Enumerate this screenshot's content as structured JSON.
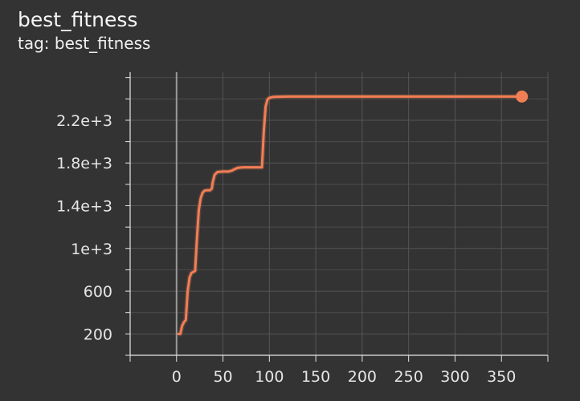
{
  "card": {
    "title": "best_fitness",
    "subtitle": "tag: best_fitness"
  },
  "colors": {
    "background": "#333333",
    "series": "#f27e55",
    "raw": "#8a5746",
    "grid": "#555555",
    "axis": "#e6e6e6",
    "zero_line": "#9a9a9a"
  },
  "chart_data": {
    "type": "line",
    "title": "best_fitness",
    "subtitle": "tag: best_fitness",
    "xlabel": "",
    "ylabel": "",
    "xlim": [
      -50,
      400
    ],
    "ylim": [
      0,
      2650
    ],
    "x_ticks": [
      0,
      50,
      100,
      150,
      200,
      250,
      300,
      350
    ],
    "x_tick_labels": [
      "0",
      "50",
      "100",
      "150",
      "200",
      "250",
      "300",
      "350"
    ],
    "y_ticks": [
      200,
      600,
      1000,
      1400,
      1800,
      2200
    ],
    "y_tick_labels": [
      "200",
      "600",
      "1e+3",
      "1.4e+3",
      "1.8e+3",
      "2.2e+3"
    ],
    "grid": true,
    "legend": "none",
    "series": [
      {
        "name": "best_fitness",
        "x": [
          2,
          4,
          6,
          8,
          10,
          12,
          14,
          16,
          18,
          20,
          22,
          24,
          26,
          28,
          30,
          32,
          34,
          36,
          38,
          39,
          41,
          44,
          50,
          56,
          60,
          62,
          66,
          72,
          80,
          88,
          92,
          94,
          96,
          98,
          100,
          104,
          110,
          120,
          150,
          200,
          250,
          300,
          350,
          372
        ],
        "y": [
          200,
          200,
          275,
          310,
          330,
          600,
          730,
          770,
          780,
          790,
          1100,
          1360,
          1470,
          1520,
          1540,
          1545,
          1545,
          1545,
          1560,
          1620,
          1690,
          1715,
          1720,
          1720,
          1730,
          1740,
          1755,
          1760,
          1760,
          1760,
          1760,
          2100,
          2330,
          2395,
          2410,
          2418,
          2420,
          2422,
          2422,
          2422,
          2422,
          2422,
          2422,
          2422
        ]
      }
    ]
  }
}
